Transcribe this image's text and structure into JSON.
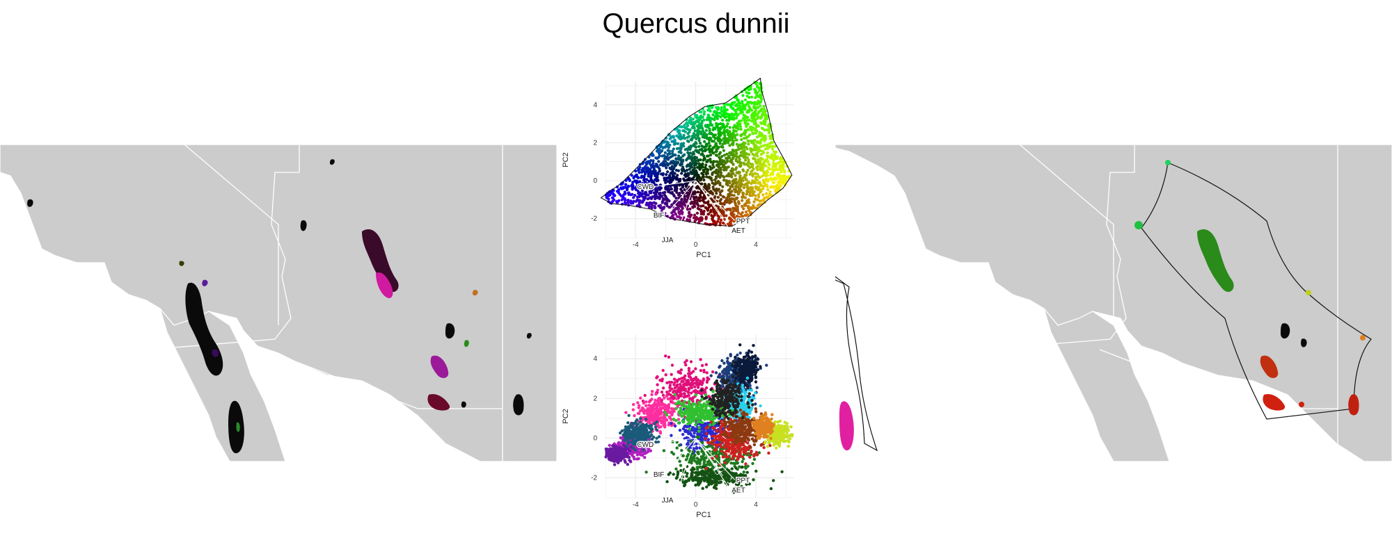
{
  "title": "Quercus dunnii",
  "colors": {
    "land": "#cccccc",
    "border": "#ffffff",
    "grid": "#ebebeb"
  },
  "chart_data": [
    {
      "type": "scatter",
      "panel": "ordination-colored",
      "xlabel": "PC1",
      "ylabel": "PC2",
      "xlim": [
        -6,
        6.5
      ],
      "ylim": [
        -3,
        5.2
      ],
      "xticks": [
        -4,
        0,
        4
      ],
      "yticks": [
        -2,
        0,
        2,
        4
      ],
      "grid": true,
      "hull": [
        [
          -6.3,
          -0.9
        ],
        [
          -4.9,
          -0.1
        ],
        [
          -3.4,
          1.1
        ],
        [
          -1.6,
          2.6
        ],
        [
          -0.4,
          3.4
        ],
        [
          0.6,
          3.9
        ],
        [
          2.0,
          4.1
        ],
        [
          2.9,
          4.6
        ],
        [
          4.3,
          5.4
        ],
        [
          4.4,
          4.7
        ],
        [
          4.8,
          3.6
        ],
        [
          5.2,
          2.1
        ],
        [
          5.9,
          1.1
        ],
        [
          6.4,
          0.3
        ],
        [
          5.8,
          -0.4
        ],
        [
          4.8,
          -1.0
        ],
        [
          3.5,
          -1.9
        ],
        [
          2.4,
          -2.4
        ],
        [
          0.6,
          -2.3
        ],
        [
          -1.6,
          -2.0
        ],
        [
          -3.0,
          -1.5
        ],
        [
          -4.4,
          -1.3
        ],
        [
          -5.6,
          -1.2
        ]
      ],
      "loadings": [
        {
          "label": "CWD",
          "x": -2.7,
          "y": -0.3
        },
        {
          "label": "JJA",
          "x": -1.4,
          "y": -3.1
        },
        {
          "label": "BIF",
          "x": -2.0,
          "y": -1.8
        },
        {
          "label": "PPT",
          "x": 2.6,
          "y": -2.1
        },
        {
          "label": "AET",
          "x": 2.3,
          "y": -2.6
        },
        {
          "label": "",
          "x": 1.8,
          "y": -1.9
        }
      ]
    },
    {
      "type": "scatter",
      "panel": "ordination-clusters",
      "xlabel": "PC1",
      "ylabel": "PC2",
      "xlim": [
        -6,
        6.5
      ],
      "ylim": [
        -3,
        5.2
      ],
      "xticks": [
        -4,
        0,
        4
      ],
      "yticks": [
        -2,
        0,
        2,
        4
      ],
      "grid": true,
      "clusters": [
        {
          "color": "#e0107a",
          "cx": -0.6,
          "cy": 2.5,
          "sx": 1.6,
          "sy": 1.0
        },
        {
          "color": "#ff2fa0",
          "cx": -2.5,
          "cy": 1.2,
          "sx": 1.2,
          "sy": 0.7
        },
        {
          "color": "#1b3f7a",
          "cx": 2.6,
          "cy": 3.0,
          "sx": 1.0,
          "sy": 0.9
        },
        {
          "color": "#0a1a3a",
          "cx": 3.4,
          "cy": 3.5,
          "sx": 0.6,
          "sy": 0.6
        },
        {
          "color": "#2ad0f0",
          "cx": 2.8,
          "cy": 1.6,
          "sx": 0.8,
          "sy": 0.7
        },
        {
          "color": "#2a2ad0",
          "cx": 0.6,
          "cy": 0.3,
          "sx": 1.4,
          "sy": 0.7
        },
        {
          "color": "#30c030",
          "cx": 0.3,
          "cy": 1.3,
          "sx": 1.4,
          "sy": 0.6
        },
        {
          "color": "#1e7a1e",
          "cx": 1.2,
          "cy": -1.0,
          "sx": 2.2,
          "sy": 0.7
        },
        {
          "color": "#145214",
          "cx": 1.2,
          "cy": -2.0,
          "sx": 2.0,
          "sy": 0.4
        },
        {
          "color": "#d02020",
          "cx": 2.6,
          "cy": -0.2,
          "sx": 1.4,
          "sy": 0.8
        },
        {
          "color": "#8a3a10",
          "cx": 3.2,
          "cy": 0.5,
          "sx": 1.0,
          "sy": 0.6
        },
        {
          "color": "#c8e020",
          "cx": 5.4,
          "cy": 0.2,
          "sx": 0.6,
          "sy": 0.4
        },
        {
          "color": "#e08020",
          "cx": 4.5,
          "cy": 0.6,
          "sx": 0.5,
          "sy": 0.4
        },
        {
          "color": "#b020c0",
          "cx": -4.2,
          "cy": -0.4,
          "sx": 1.0,
          "sy": 0.5
        },
        {
          "color": "#6a1aa0",
          "cx": -5.2,
          "cy": -0.8,
          "sx": 0.6,
          "sy": 0.3
        },
        {
          "color": "#1a5a7a",
          "cx": -3.8,
          "cy": 0.2,
          "sx": 0.8,
          "sy": 0.5
        },
        {
          "color": "#222222",
          "cx": 2.0,
          "cy": 2.0,
          "sx": 1.0,
          "sy": 0.8
        }
      ],
      "loadings": [
        {
          "label": "CWD",
          "x": -2.7,
          "y": -0.3
        },
        {
          "label": "JJA",
          "x": -1.4,
          "y": -3.1
        },
        {
          "label": "BIF",
          "x": -2.0,
          "y": -1.8
        },
        {
          "label": "PPT",
          "x": 2.6,
          "y": -2.1
        },
        {
          "label": "AET",
          "x": 2.3,
          "y": -2.6
        },
        {
          "label": "",
          "x": 1.8,
          "y": -1.9
        }
      ]
    }
  ]
}
